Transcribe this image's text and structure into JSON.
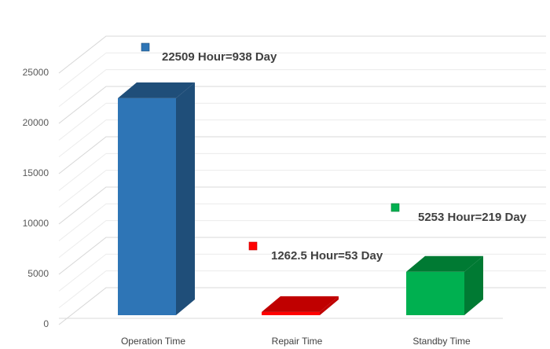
{
  "chart_data": {
    "type": "bar",
    "style": "3d-column",
    "categories": [
      "Operation Time",
      "Repair Time",
      "Standby Time"
    ],
    "values": [
      22509,
      1262.5,
      5253
    ],
    "data_labels": [
      "22509 Hour=938 Day",
      "1262.5 Hour=53 Day",
      "5253 Hour=219 Day"
    ],
    "colors": [
      "#2E75B6",
      "#FF0000",
      "#00B050"
    ],
    "side_colors": [
      "#1F4E79",
      "#C00000",
      "#007A33"
    ],
    "top_colors": [
      "#1F4E79",
      "#C00000",
      "#007A33"
    ],
    "yticks": [
      "0",
      "5000",
      "10000",
      "15000",
      "20000",
      "25000"
    ],
    "ylim": [
      0,
      25000
    ],
    "grid": true,
    "legend": "none",
    "title": "",
    "xlabel": "",
    "ylabel": ""
  }
}
